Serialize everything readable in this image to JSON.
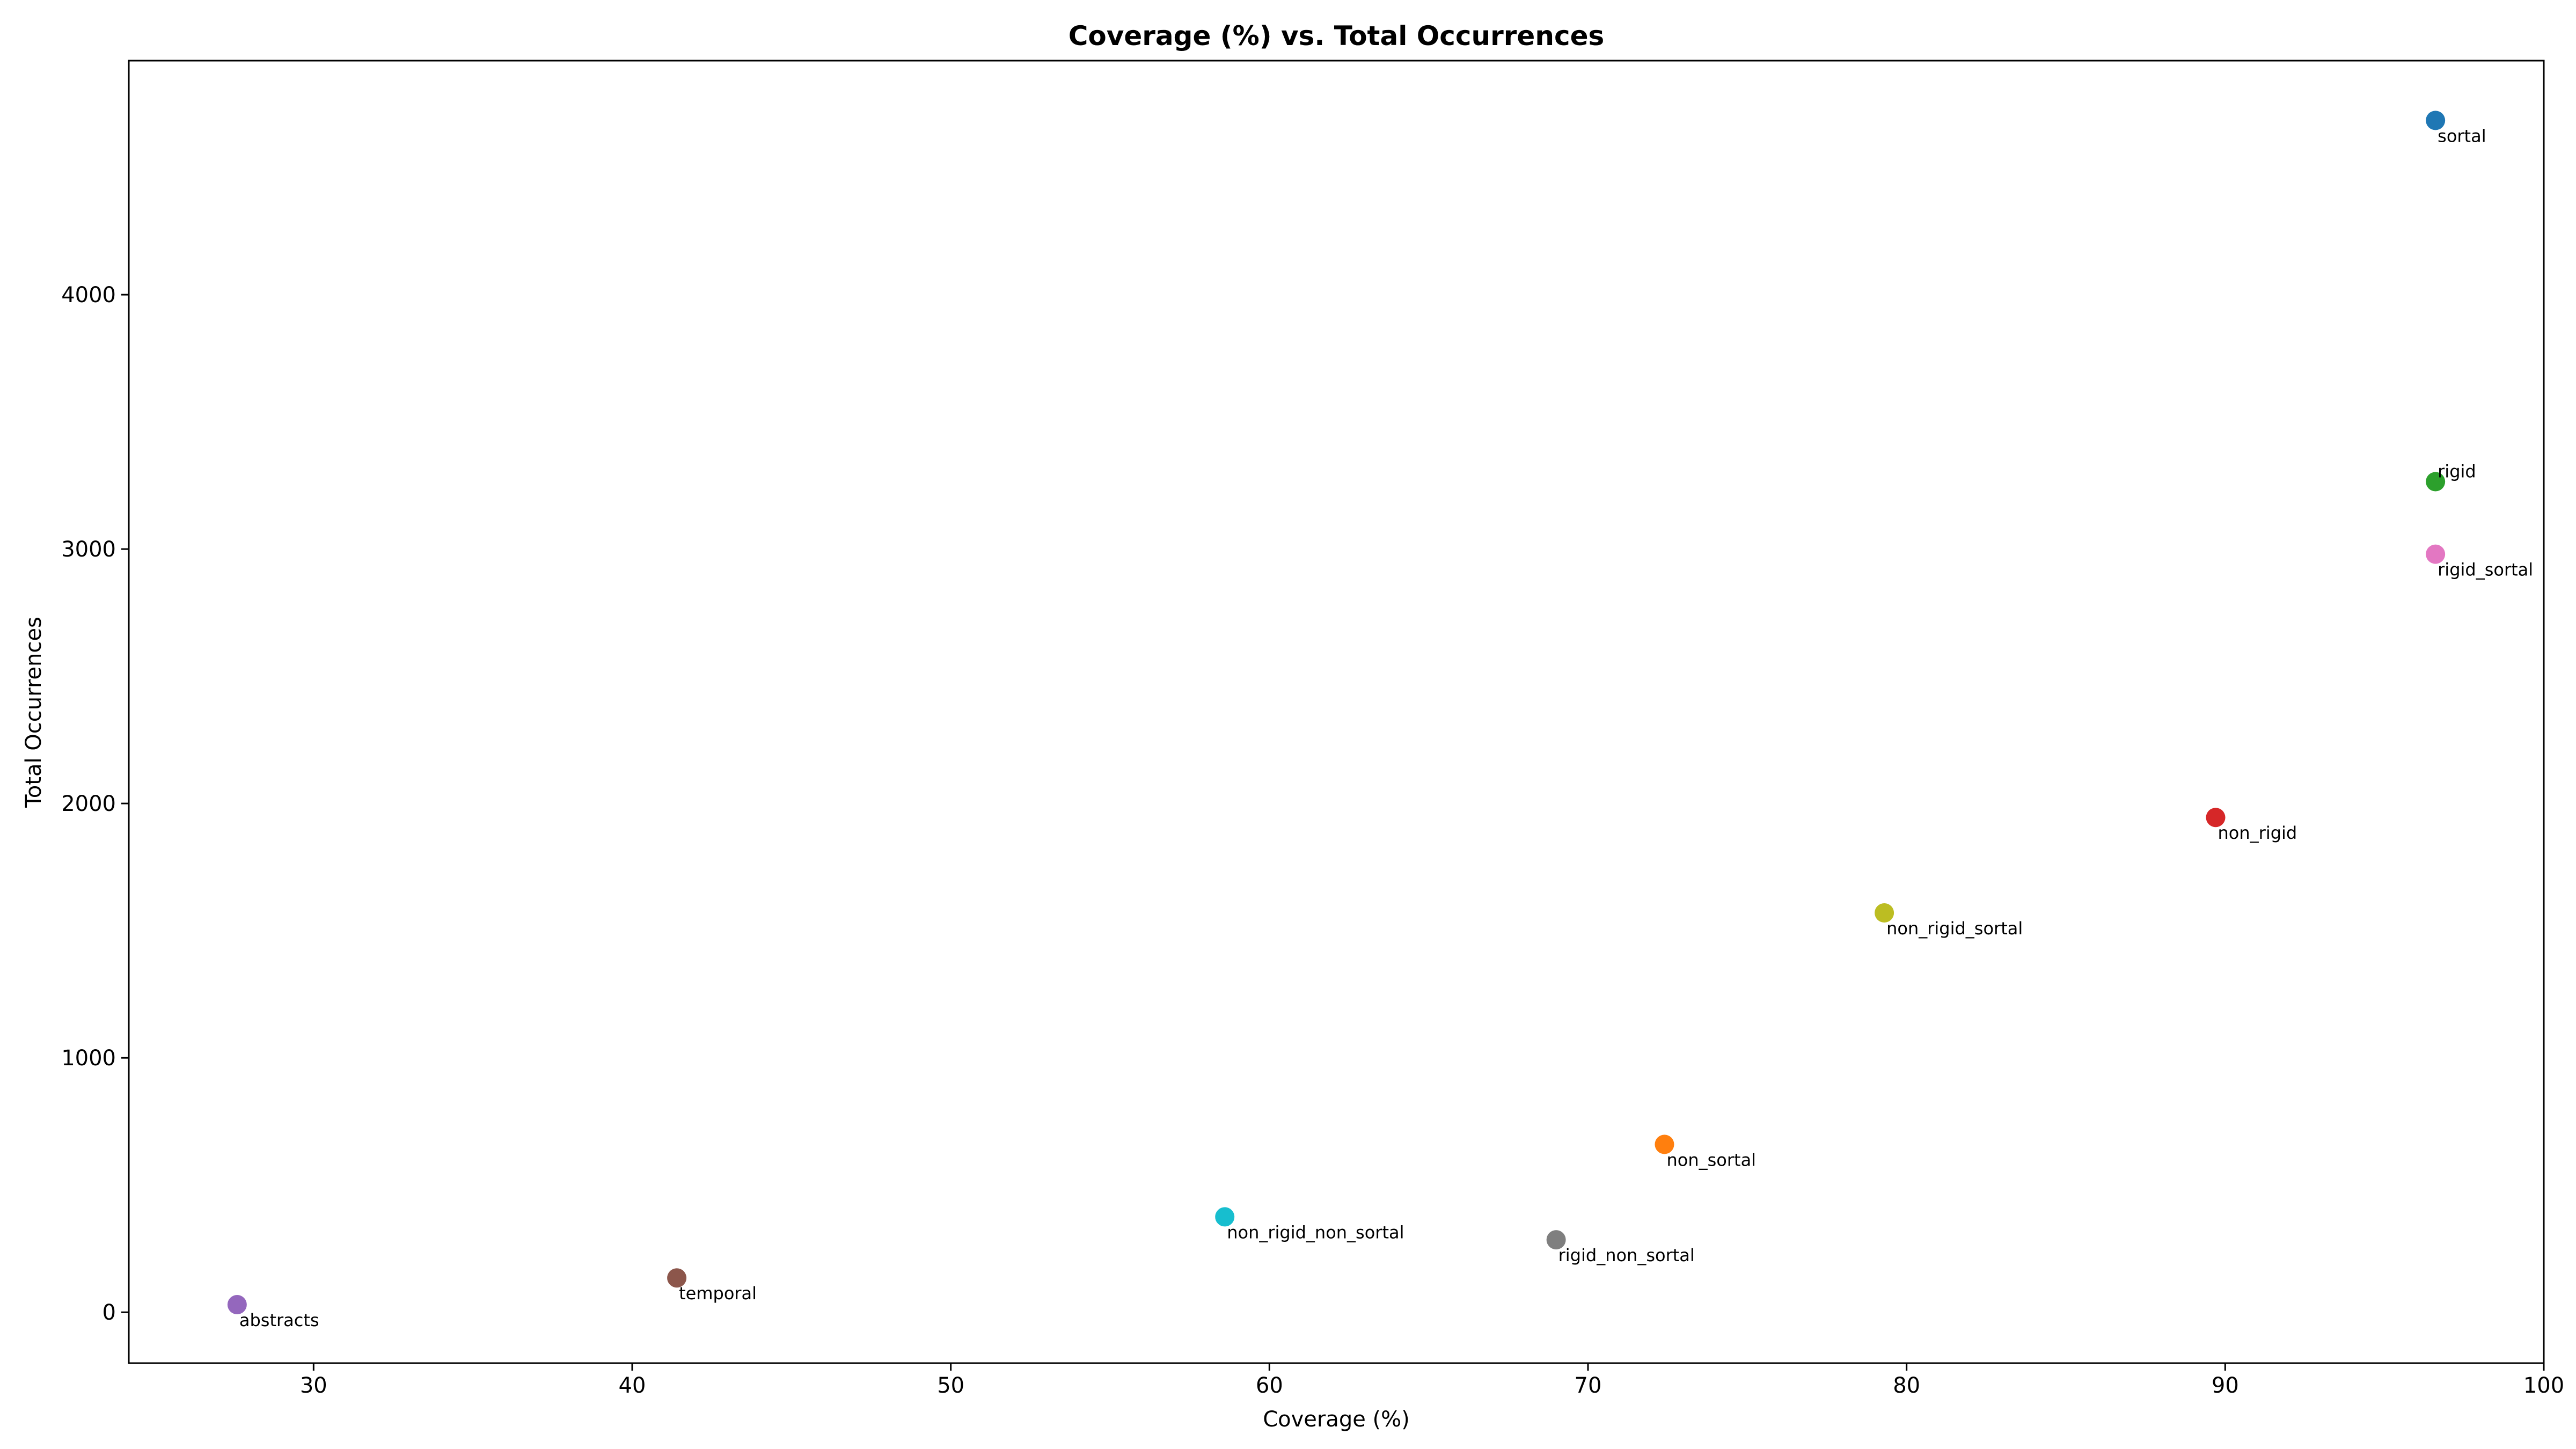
{
  "chart_data": {
    "type": "scatter",
    "title": "Coverage (%) vs. Total Occurrences",
    "xlabel": "Coverage (%)",
    "ylabel": "Total Occurrences",
    "xlim": [
      24.2,
      100
    ],
    "ylim": [
      -200,
      4920
    ],
    "xticks": [
      30,
      40,
      50,
      60,
      70,
      80,
      90,
      100
    ],
    "yticks": [
      0,
      1000,
      2000,
      3000,
      4000
    ],
    "grid": false,
    "points": [
      {
        "label": "sortal",
        "x": 96.6,
        "y": 4685,
        "color": "#1f77b4"
      },
      {
        "label": "non_sortal",
        "x": 72.4,
        "y": 660,
        "color": "#ff7f0e"
      },
      {
        "label": "rigid",
        "x": 96.6,
        "y": 3265,
        "color": "#2ca02c"
      },
      {
        "label": "non_rigid",
        "x": 89.7,
        "y": 1945,
        "color": "#d62728"
      },
      {
        "label": "abstracts",
        "x": 27.6,
        "y": 30,
        "color": "#9467bd"
      },
      {
        "label": "temporal",
        "x": 41.4,
        "y": 135,
        "color": "#8c564b"
      },
      {
        "label": "rigid_sortal",
        "x": 96.6,
        "y": 2980,
        "color": "#e377c2"
      },
      {
        "label": "rigid_non_sortal",
        "x": 69.0,
        "y": 285,
        "color": "#7f7f7f"
      },
      {
        "label": "non_rigid_sortal",
        "x": 79.3,
        "y": 1570,
        "color": "#bcbd22"
      },
      {
        "label": "non_rigid_non_sortal",
        "x": 58.6,
        "y": 375,
        "color": "#17becf"
      }
    ]
  }
}
